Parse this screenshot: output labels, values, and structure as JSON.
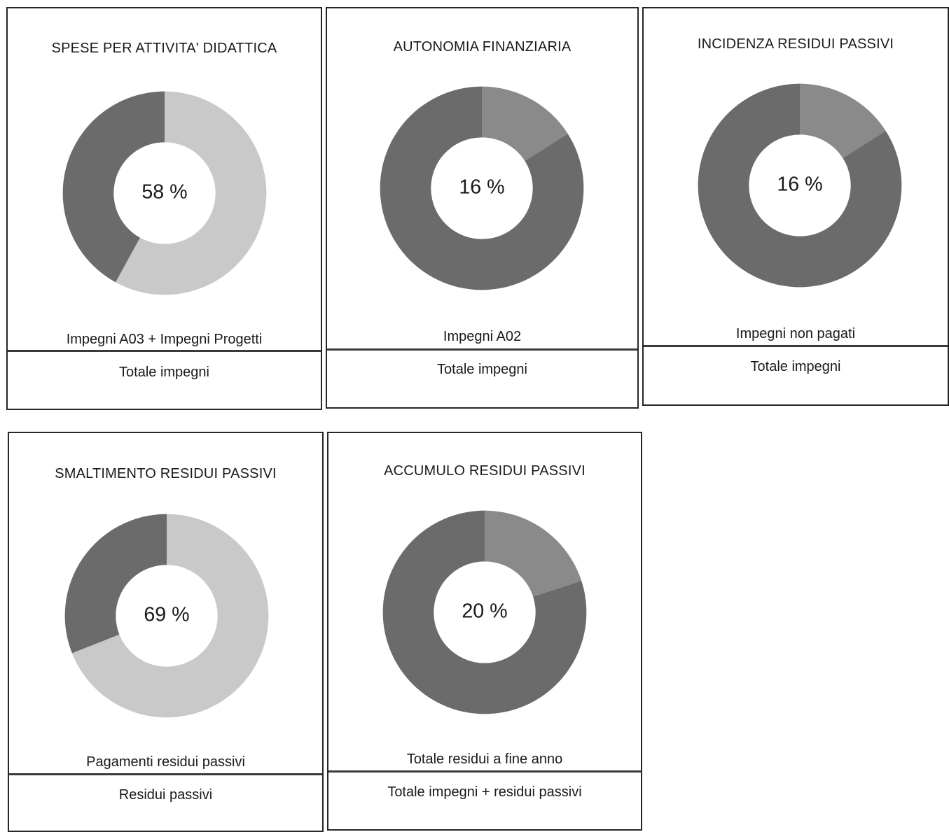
{
  "colors": {
    "primary": "#6b6b6b",
    "secondary": "#c9c9c9",
    "rest": "#6b6b6b"
  },
  "panels": [
    {
      "title": "SPESE PER ATTIVITA' DIDATTICA",
      "percent_label": "58 %",
      "numerator": "Impegni A03 + Impegni Progetti",
      "denominator": "Totale impegni"
    },
    {
      "title": "AUTONOMIA FINANZIARIA",
      "percent_label": "16 %",
      "numerator": "Impegni A02",
      "denominator": "Totale impegni"
    },
    {
      "title": "INCIDENZA RESIDUI PASSIVI",
      "percent_label": "16 %",
      "numerator": "Impegni non pagati",
      "denominator": "Totale impegni"
    },
    {
      "title": "SMALTIMENTO RESIDUI PASSIVI",
      "percent_label": "69 %",
      "numerator": "Pagamenti residui passivi",
      "denominator": "Residui passivi"
    },
    {
      "title": "ACCUMULO RESIDUI PASSIVI",
      "percent_label": "20 %",
      "numerator": "Totale residui a fine anno",
      "denominator": "Totale impegni + residui passivi"
    }
  ],
  "chart_data": [
    {
      "type": "pie",
      "title": "SPESE PER ATTIVITA' DIDATTICA",
      "values": [
        58,
        42
      ],
      "highlight_color": "#c9c9c9"
    },
    {
      "type": "pie",
      "title": "AUTONOMIA FINANZIARIA",
      "values": [
        16,
        84
      ],
      "highlight_color": "#8a8a8a"
    },
    {
      "type": "pie",
      "title": "INCIDENZA RESIDUI PASSIVI",
      "values": [
        16,
        84
      ],
      "highlight_color": "#8a8a8a"
    },
    {
      "type": "pie",
      "title": "SMALTIMENTO RESIDUI PASSIVI",
      "values": [
        69,
        31
      ],
      "highlight_color": "#c9c9c9"
    },
    {
      "type": "pie",
      "title": "ACCUMULO RESIDUI PASSIVI",
      "values": [
        20,
        80
      ],
      "highlight_color": "#8a8a8a"
    }
  ]
}
